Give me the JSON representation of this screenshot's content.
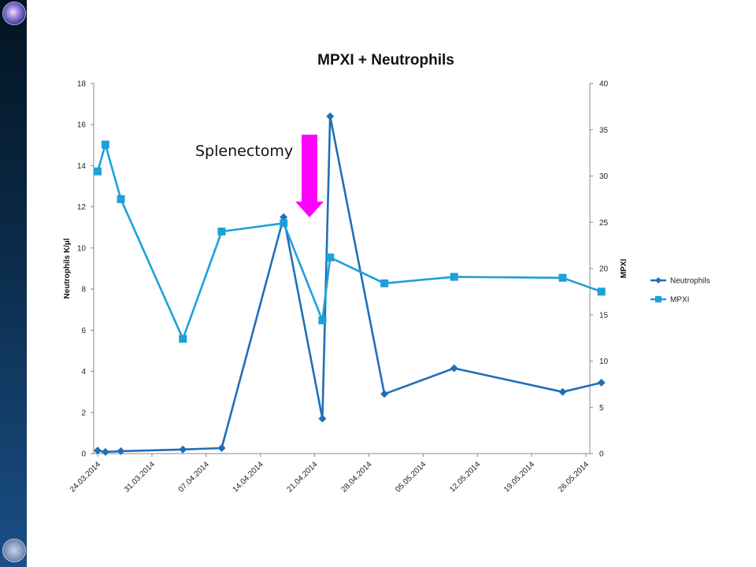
{
  "chart_data": {
    "type": "line",
    "title": "MPXI + Neutrophils",
    "y_left_label": "Neutrophils K/µl",
    "y_right_label": "MPXI",
    "y_left_lim": [
      0,
      18
    ],
    "y_right_lim": [
      0,
      40
    ],
    "y_left_ticks": [
      "0",
      "2",
      "4",
      "6",
      "8",
      "10",
      "12",
      "14",
      "16",
      "18"
    ],
    "y_right_ticks": [
      "0",
      "5",
      "10",
      "15",
      "20",
      "25",
      "30",
      "35",
      "40"
    ],
    "x_ticks": [
      "24.03.2014",
      "31.03.2014",
      "07.04.2014",
      "14.04.2014",
      "21.04.2014",
      "28.04.2014",
      "05.05.2014",
      "12.05.2014",
      "19.05.2014",
      "26.05.2014"
    ],
    "x_range": [
      "2014-03-24",
      "2014-05-26"
    ],
    "grid": "none",
    "legend_position": "right",
    "series": [
      {
        "name": "Neutrophils",
        "axis": "left",
        "color": "#1f6fb8",
        "marker": "diamond",
        "points": [
          {
            "x": "2014-03-24",
            "y": 0.15
          },
          {
            "x": "2014-03-25",
            "y": 0.08
          },
          {
            "x": "2014-03-27",
            "y": 0.12
          },
          {
            "x": "2014-04-04",
            "y": 0.2
          },
          {
            "x": "2014-04-09",
            "y": 0.27
          },
          {
            "x": "2014-04-17",
            "y": 11.5
          },
          {
            "x": "2014-04-22",
            "y": 1.7
          },
          {
            "x": "2014-04-23",
            "y": 16.4
          },
          {
            "x": "2014-04-30",
            "y": 2.9
          },
          {
            "x": "2014-05-09",
            "y": 4.15
          },
          {
            "x": "2014-05-23",
            "y": 3.0
          },
          {
            "x": "2014-05-28",
            "y": 3.45
          }
        ]
      },
      {
        "name": "MPXI",
        "axis": "right",
        "color": "#1ea0d8",
        "marker": "square",
        "points": [
          {
            "x": "2014-03-24",
            "y": 30.5
          },
          {
            "x": "2014-03-25",
            "y": 33.4
          },
          {
            "x": "2014-03-27",
            "y": 27.5
          },
          {
            "x": "2014-04-04",
            "y": 12.4
          },
          {
            "x": "2014-04-09",
            "y": 24.0
          },
          {
            "x": "2014-04-17",
            "y": 24.9
          },
          {
            "x": "2014-04-22",
            "y": 14.4
          },
          {
            "x": "2014-04-23",
            "y": 21.2
          },
          {
            "x": "2014-04-30",
            "y": 18.4
          },
          {
            "x": "2014-05-09",
            "y": 19.1
          },
          {
            "x": "2014-05-23",
            "y": 19.0
          },
          {
            "x": "2014-05-28",
            "y": 17.5
          }
        ]
      }
    ],
    "annotations": [
      {
        "text": "Splenectomy",
        "arrow_color": "#ff00ff",
        "arrow_direction": "down"
      }
    ]
  }
}
